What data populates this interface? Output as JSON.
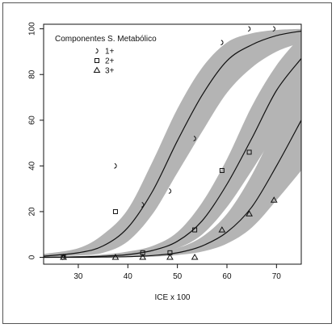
{
  "chart_data": {
    "type": "line",
    "title": "",
    "xlabel": "ICE x 100",
    "ylabel": "",
    "xlim": [
      23,
      75
    ],
    "ylim": [
      -3,
      102
    ],
    "xticks": [
      30,
      40,
      50,
      60,
      70
    ],
    "yticks": [
      0,
      20,
      40,
      60,
      80,
      100
    ],
    "grid": false,
    "legend": {
      "title": "Componentes S. Metabólico",
      "placement": "top-left",
      "entries": [
        {
          "label": "1+",
          "marker": "hook"
        },
        {
          "label": "2+",
          "marker": "square"
        },
        {
          "label": "3+",
          "marker": "triangle"
        }
      ]
    },
    "band_color": "#b4b4b4",
    "line_color": "#111111",
    "series": [
      {
        "name": "1+",
        "marker": "hook",
        "curve": {
          "x": [
            23,
            30,
            35,
            40,
            45,
            50,
            55,
            60,
            65,
            70,
            75
          ],
          "y": [
            0.5,
            2,
            5,
            13,
            29,
            51,
            71,
            86,
            93,
            97,
            99
          ],
          "lower": [
            0.2,
            0.8,
            2,
            7,
            19,
            37,
            55,
            72,
            83,
            90,
            94
          ],
          "upper": [
            1.5,
            4,
            10,
            21,
            42,
            65,
            83,
            94,
            98,
            99.5,
            100
          ]
        },
        "points": [
          {
            "x": 27,
            "y": 0
          },
          {
            "x": 37.5,
            "y": 40
          },
          {
            "x": 43,
            "y": 23
          },
          {
            "x": 48.5,
            "y": 29
          },
          {
            "x": 53.5,
            "y": 52
          },
          {
            "x": 59,
            "y": 94
          },
          {
            "x": 64.5,
            "y": 100
          },
          {
            "x": 69.5,
            "y": 100
          }
        ]
      },
      {
        "name": "2+",
        "marker": "square",
        "curve": {
          "x": [
            23,
            30,
            35,
            40,
            45,
            50,
            55,
            60,
            65,
            70,
            75
          ],
          "y": [
            0,
            0.2,
            0.5,
            1.2,
            3,
            7,
            16,
            32,
            52,
            73,
            87
          ],
          "lower": [
            0,
            0.1,
            0.2,
            0.5,
            1.5,
            4,
            10,
            22,
            38,
            55,
            70
          ],
          "upper": [
            0.2,
            0.5,
            1.2,
            2.5,
            5,
            11,
            24,
            43,
            66,
            84,
            97
          ]
        },
        "points": [
          {
            "x": 27,
            "y": 0
          },
          {
            "x": 37.5,
            "y": 20
          },
          {
            "x": 43,
            "y": 2
          },
          {
            "x": 48.5,
            "y": 2
          },
          {
            "x": 53.5,
            "y": 12
          },
          {
            "x": 59,
            "y": 38
          },
          {
            "x": 64.5,
            "y": 46
          }
        ]
      },
      {
        "name": "3+",
        "marker": "triangle",
        "curve": {
          "x": [
            23,
            30,
            35,
            40,
            45,
            50,
            55,
            60,
            65,
            70,
            75
          ],
          "y": [
            0,
            0,
            0.1,
            0.3,
            0.8,
            2,
            5,
            11,
            22,
            40,
            60
          ],
          "lower": [
            0,
            0,
            0,
            0.1,
            0.3,
            1,
            2.5,
            6,
            13,
            25,
            38
          ],
          "upper": [
            0.1,
            0.2,
            0.4,
            0.8,
            1.8,
            4,
            9,
            19,
            36,
            58,
            80
          ]
        },
        "points": [
          {
            "x": 27,
            "y": 0
          },
          {
            "x": 37.5,
            "y": 0
          },
          {
            "x": 43,
            "y": 0
          },
          {
            "x": 48.5,
            "y": 0
          },
          {
            "x": 53.5,
            "y": 0
          },
          {
            "x": 59,
            "y": 12
          },
          {
            "x": 64.5,
            "y": 19
          },
          {
            "x": 69.5,
            "y": 25
          }
        ]
      }
    ]
  }
}
